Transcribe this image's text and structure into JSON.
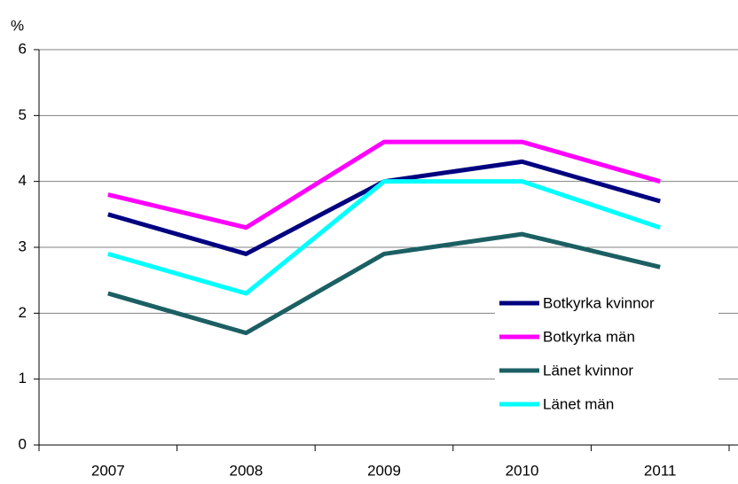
{
  "chart_data": {
    "type": "line",
    "y_label": "%",
    "categories": [
      "2007",
      "2008",
      "2009",
      "2010",
      "2011"
    ],
    "series": [
      {
        "name": "Botkyrka kvinnor",
        "color": "#000080",
        "values": [
          3.5,
          2.9,
          4.0,
          4.3,
          3.7
        ]
      },
      {
        "name": "Botkyrka män",
        "color": "#ff00ff",
        "values": [
          3.8,
          3.3,
          4.6,
          4.6,
          4.0
        ]
      },
      {
        "name": "Länet kvinnor",
        "color": "#1b5f63",
        "values": [
          2.3,
          1.7,
          2.9,
          3.2,
          2.7
        ]
      },
      {
        "name": "Länet män",
        "color": "#00ffff",
        "values": [
          2.9,
          2.3,
          4.0,
          4.0,
          3.3
        ]
      }
    ],
    "ylim": [
      0,
      6
    ],
    "yticks": [
      0,
      1,
      2,
      3,
      4,
      5,
      6
    ],
    "grid": true,
    "legend": "lower right"
  }
}
